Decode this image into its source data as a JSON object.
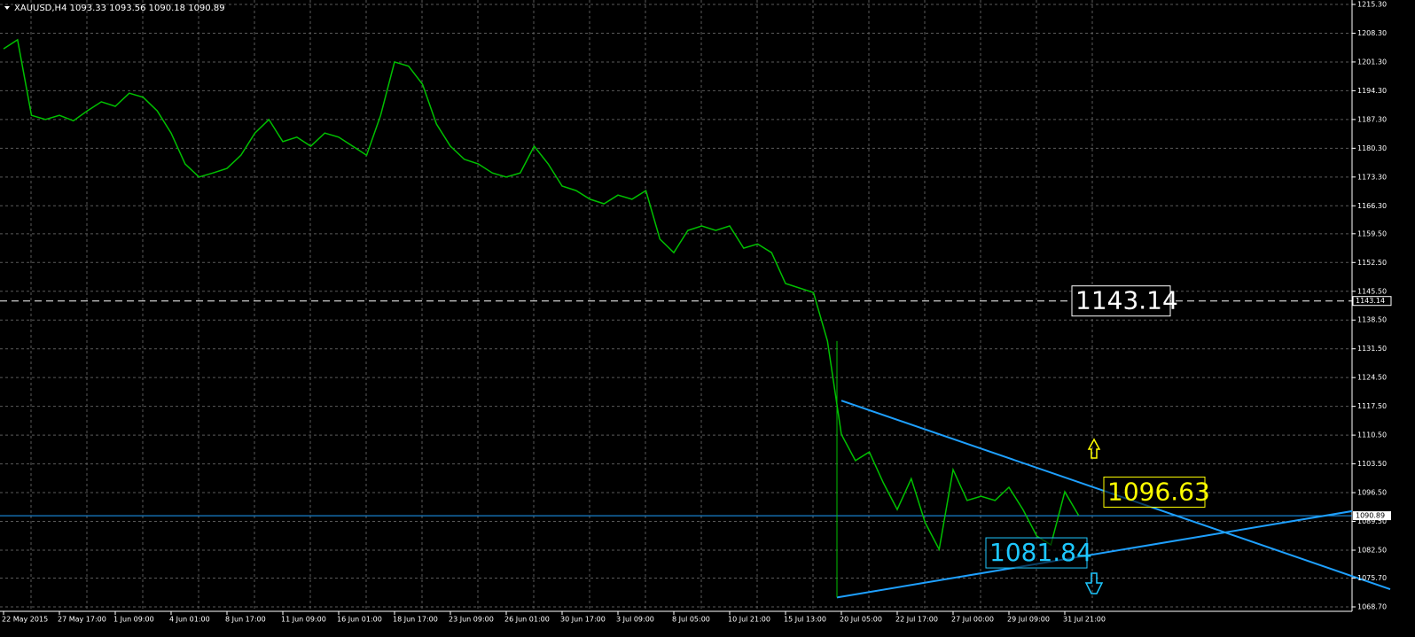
{
  "chart_data": {
    "type": "line",
    "title": "XAUUSD,H4  1093.33 1093.56 1090.18 1090.89",
    "categories": [
      "22 May 2015",
      null,
      null,
      null,
      "27 May 17:00",
      null,
      null,
      null,
      "1 Jun 09:00",
      null,
      null,
      null,
      "4 Jun 01:00",
      null,
      null,
      null,
      "8 Jun 17:00",
      null,
      null,
      null,
      "11 Jun 09:00",
      null,
      null,
      null,
      "16 Jun 01:00",
      null,
      null,
      null,
      "18 Jun 17:00",
      null,
      null,
      null,
      "23 Jun 09:00",
      null,
      null,
      null,
      "26 Jun 01:00",
      null,
      null,
      null,
      "30 Jun 17:00",
      null,
      null,
      null,
      "3 Jul 09:00",
      null,
      null,
      null,
      "8 Jul 05:00",
      null,
      null,
      null,
      "10 Jul 21:00",
      null,
      null,
      null,
      "15 Jul 13:00",
      null,
      null,
      null,
      "20 Jul 05:00",
      null,
      null,
      null,
      "22 Jul 17:00",
      null,
      null,
      null,
      "27 Jul 00:00",
      null,
      null,
      null,
      "29 Jul 09:00",
      null,
      null,
      null,
      "31 Jul 21:00",
      null
    ],
    "values": [
      1204.5,
      1206.7,
      1188.3,
      1187.3,
      1188.3,
      1187.0,
      1189.4,
      1191.6,
      1190.5,
      1193.7,
      1192.7,
      1189.4,
      1184.0,
      1176.5,
      1173.3,
      1174.3,
      1175.4,
      1178.6,
      1184.0,
      1187.3,
      1181.9,
      1183.0,
      1180.8,
      1184.0,
      1183.0,
      1180.8,
      1178.6,
      1188.3,
      1201.3,
      1200.3,
      1195.9,
      1186.2,
      1180.8,
      1177.6,
      1176.5,
      1174.3,
      1173.3,
      1174.3,
      1180.8,
      1176.5,
      1171.1,
      1170.0,
      1167.9,
      1166.8,
      1168.9,
      1167.9,
      1170.0,
      1158.2,
      1154.9,
      1160.3,
      1161.4,
      1160.3,
      1161.4,
      1156.0,
      1157.0,
      1154.9,
      1147.4,
      1146.3,
      1145.2,
      1133.4,
      1110.7,
      1104.3,
      1106.4,
      1098.9,
      1092.4,
      1099.9,
      1089.2,
      1082.7,
      1102.1,
      1094.6,
      1095.6,
      1094.6,
      1097.8,
      1092.4,
      1085.9,
      1083.8,
      1096.7,
      1090.89
    ],
    "color": "#00c000",
    "ylim": [
      1068.7,
      1215.3
    ],
    "yticks": [
      {
        "value": 1215.3,
        "label": "1215.30"
      },
      {
        "value": 1208.3,
        "label": "1208.30"
      },
      {
        "value": 1201.3,
        "label": "1201.30"
      },
      {
        "value": 1194.3,
        "label": "1194.30"
      },
      {
        "value": 1187.3,
        "label": "1187.30"
      },
      {
        "value": 1180.3,
        "label": "1180.30"
      },
      {
        "value": 1173.3,
        "label": "1173.30"
      },
      {
        "value": 1166.3,
        "label": "1166.30"
      },
      {
        "value": 1159.5,
        "label": "1159.50"
      },
      {
        "value": 1152.5,
        "label": "1152.50"
      },
      {
        "value": 1145.5,
        "label": "1145.50"
      },
      {
        "value": 1138.5,
        "label": "1138.50"
      },
      {
        "value": 1131.5,
        "label": "1131.50"
      },
      {
        "value": 1124.5,
        "label": "1124.50"
      },
      {
        "value": 1117.5,
        "label": "1117.50"
      },
      {
        "value": 1110.5,
        "label": "1110.50"
      },
      {
        "value": 1103.5,
        "label": "1103.50"
      },
      {
        "value": 1096.5,
        "label": "1096.50"
      },
      {
        "value": 1089.5,
        "label": "1089.50"
      },
      {
        "value": 1082.5,
        "label": "1082.50"
      },
      {
        "value": 1075.7,
        "label": "1075.70"
      },
      {
        "value": 1068.7,
        "label": "1068.70"
      }
    ],
    "grid": true,
    "level": {
      "value": 1143.14,
      "color": "#ffffff"
    },
    "bid": {
      "value": 1090.89,
      "color": "#1ea0ff"
    },
    "annotations": [
      {
        "value": 1096.63,
        "color": "#ffff00"
      },
      {
        "value": 1081.84,
        "color": "#1ec8ff"
      }
    ],
    "trendlines": [
      {
        "from": 1118.9,
        "to": 1073.0,
        "color": "#1ea0ff"
      },
      {
        "from": 1071.0,
        "to": 1092.0,
        "color": "#1ea0ff"
      }
    ]
  }
}
